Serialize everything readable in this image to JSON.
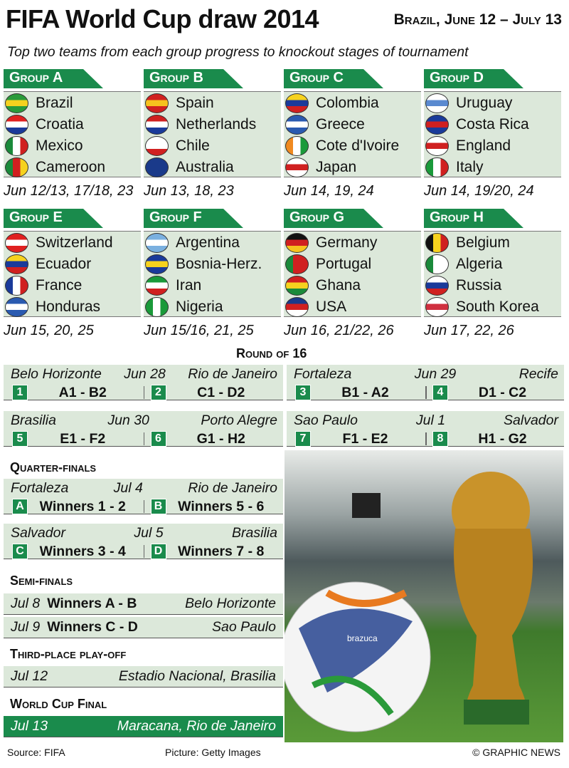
{
  "header": {
    "title": "FIFA World Cup draw 2014",
    "dates": "Brazil, June 12 – July 13",
    "subtitle": "Top two teams from each group progress to knockout stages of tournament"
  },
  "colors": {
    "green": "#1a8b4c",
    "panel": "#dce8da"
  },
  "groups": [
    {
      "name": "Group A",
      "dates": "Jun 12/13, 17/18, 23",
      "teams": [
        {
          "name": "Brazil",
          "flag": [
            "#2a9a3a",
            "#f6d21e",
            "#2a9a3a"
          ]
        },
        {
          "name": "Croatia",
          "flag": [
            "#e02020",
            "#ffffff",
            "#1a3a9a"
          ]
        },
        {
          "name": "Mexico",
          "flag": [
            "#1a8a3a",
            "#ffffff",
            "#d02020"
          ],
          "v": true
        },
        {
          "name": "Cameroon",
          "flag": [
            "#1a8a3a",
            "#d02020",
            "#f6d21e"
          ],
          "v": true
        }
      ]
    },
    {
      "name": "Group B",
      "dates": "Jun 13, 18, 23",
      "teams": [
        {
          "name": "Spain",
          "flag": [
            "#d02020",
            "#f6c21e",
            "#d02020"
          ]
        },
        {
          "name": "Netherlands",
          "flag": [
            "#d02020",
            "#ffffff",
            "#1a3a9a"
          ]
        },
        {
          "name": "Chile",
          "flag": [
            "#ffffff",
            "#ffffff",
            "#d02020"
          ]
        },
        {
          "name": "Australia",
          "flag": [
            "#1a3a8a",
            "#1a3a8a",
            "#1a3a8a"
          ]
        }
      ]
    },
    {
      "name": "Group C",
      "dates": "Jun 14, 19, 24",
      "teams": [
        {
          "name": "Colombia",
          "flag": [
            "#f6d21e",
            "#1a3a9a",
            "#d02020"
          ]
        },
        {
          "name": "Greece",
          "flag": [
            "#2a5ab0",
            "#ffffff",
            "#2a5ab0"
          ]
        },
        {
          "name": "Cote d'Ivoire",
          "flag": [
            "#f08a20",
            "#ffffff",
            "#1a9a3a"
          ],
          "v": true
        },
        {
          "name": "Japan",
          "flag": [
            "#ffffff",
            "#d02020",
            "#ffffff"
          ]
        }
      ]
    },
    {
      "name": "Group D",
      "dates": "Jun 14, 19/20, 24",
      "teams": [
        {
          "name": "Uruguay",
          "flag": [
            "#ffffff",
            "#5a8ad0",
            "#ffffff"
          ]
        },
        {
          "name": "Costa Rica",
          "flag": [
            "#1a3a9a",
            "#d02020",
            "#1a3a9a"
          ]
        },
        {
          "name": "England",
          "flag": [
            "#ffffff",
            "#d02020",
            "#ffffff"
          ]
        },
        {
          "name": "Italy",
          "flag": [
            "#1a9a3a",
            "#ffffff",
            "#d02020"
          ],
          "v": true
        }
      ]
    },
    {
      "name": "Group E",
      "dates": "Jun 15, 20, 25",
      "teams": [
        {
          "name": "Switzerland",
          "flag": [
            "#e02020",
            "#ffffff",
            "#e02020"
          ]
        },
        {
          "name": "Ecuador",
          "flag": [
            "#f6d21e",
            "#1a3a9a",
            "#d02020"
          ]
        },
        {
          "name": "France",
          "flag": [
            "#1a3a9a",
            "#ffffff",
            "#d02020"
          ],
          "v": true
        },
        {
          "name": "Honduras",
          "flag": [
            "#2a5ab0",
            "#ffffff",
            "#2a5ab0"
          ]
        }
      ]
    },
    {
      "name": "Group F",
      "dates": "Jun 15/16, 21, 25",
      "teams": [
        {
          "name": "Argentina",
          "flag": [
            "#7ab0e0",
            "#ffffff",
            "#7ab0e0"
          ]
        },
        {
          "name": "Bosnia-Herz.",
          "flag": [
            "#1a3a9a",
            "#f6d21e",
            "#1a3a9a"
          ]
        },
        {
          "name": "Iran",
          "flag": [
            "#1a9a3a",
            "#ffffff",
            "#d02020"
          ]
        },
        {
          "name": "Nigeria",
          "flag": [
            "#1a9a3a",
            "#ffffff",
            "#1a9a3a"
          ],
          "v": true
        }
      ]
    },
    {
      "name": "Group G",
      "dates": "Jun 16, 21/22, 26",
      "teams": [
        {
          "name": "Germany",
          "flag": [
            "#111111",
            "#d02020",
            "#f6c21e"
          ]
        },
        {
          "name": "Portugal",
          "flag": [
            "#1a8a3a",
            "#d02020",
            "#d02020"
          ],
          "v": true
        },
        {
          "name": "Ghana",
          "flag": [
            "#d02020",
            "#f6d21e",
            "#1a8a3a"
          ]
        },
        {
          "name": "USA",
          "flag": [
            "#1a3a8a",
            "#d02020",
            "#ffffff"
          ]
        }
      ]
    },
    {
      "name": "Group H",
      "dates": "Jun 17, 22, 26",
      "teams": [
        {
          "name": "Belgium",
          "flag": [
            "#111111",
            "#f6d21e",
            "#d02020"
          ],
          "v": true
        },
        {
          "name": "Algeria",
          "flag": [
            "#1a8a3a",
            "#ffffff",
            "#ffffff"
          ],
          "v": true
        },
        {
          "name": "Russia",
          "flag": [
            "#ffffff",
            "#1a3a9a",
            "#d02020"
          ]
        },
        {
          "name": "South Korea",
          "flag": [
            "#ffffff",
            "#d03040",
            "#ffffff"
          ]
        }
      ]
    }
  ],
  "round16": {
    "title": "Round of 16",
    "rows": [
      {
        "date": "Jun 28",
        "venue_left": "Belo Horizonte",
        "venue_right": "Rio de Janeiro",
        "m1": {
          "num": "1",
          "teams": "A1 - B2"
        },
        "m2": {
          "num": "2",
          "teams": "C1 - D2"
        }
      },
      {
        "date": "Jun 29",
        "venue_left": "Fortaleza",
        "venue_right": "Recife",
        "m1": {
          "num": "3",
          "teams": "B1 - A2"
        },
        "m2": {
          "num": "4",
          "teams": "D1 - C2"
        }
      },
      {
        "date": "Jun 30",
        "venue_left": "Brasilia",
        "venue_right": "Porto Alegre",
        "m1": {
          "num": "5",
          "teams": "E1 - F2"
        },
        "m2": {
          "num": "6",
          "teams": "G1 - H2"
        }
      },
      {
        "date": "Jul 1",
        "venue_left": "Sao Paulo",
        "venue_right": "Salvador",
        "m1": {
          "num": "7",
          "teams": "F1 - E2"
        },
        "m2": {
          "num": "8",
          "teams": "H1 - G2"
        }
      }
    ]
  },
  "quarter": {
    "title": "Quarter-finals",
    "rows": [
      {
        "date": "Jul 4",
        "venue_left": "Fortaleza",
        "venue_right": "Rio de Janeiro",
        "m1": {
          "num": "A",
          "teams": "Winners 1 - 2"
        },
        "m2": {
          "num": "B",
          "teams": "Winners 5 - 6"
        }
      },
      {
        "date": "Jul 5",
        "venue_left": "Salvador",
        "venue_right": "Brasilia",
        "m1": {
          "num": "C",
          "teams": "Winners 3 - 4"
        },
        "m2": {
          "num": "D",
          "teams": "Winners 7 - 8"
        }
      }
    ]
  },
  "semi": {
    "title": "Semi-finals",
    "rows": [
      {
        "date": "Jul 8",
        "teams": "Winners A - B",
        "venue": "Belo Horizonte"
      },
      {
        "date": "Jul 9",
        "teams": "Winners C - D",
        "venue": "Sao Paulo"
      }
    ]
  },
  "third": {
    "title": "Third-place play-off",
    "date": "Jul 12",
    "venue": "Estadio Nacional, Brasilia"
  },
  "final": {
    "title": "World Cup Final",
    "date": "Jul 13",
    "venue": "Maracana, Rio de Janeiro"
  },
  "footer": {
    "source": "Source: FIFA",
    "picture": "Picture: Getty Images",
    "credit": "© GRAPHIC NEWS"
  },
  "photo": {
    "ball_text": "brazuca"
  }
}
